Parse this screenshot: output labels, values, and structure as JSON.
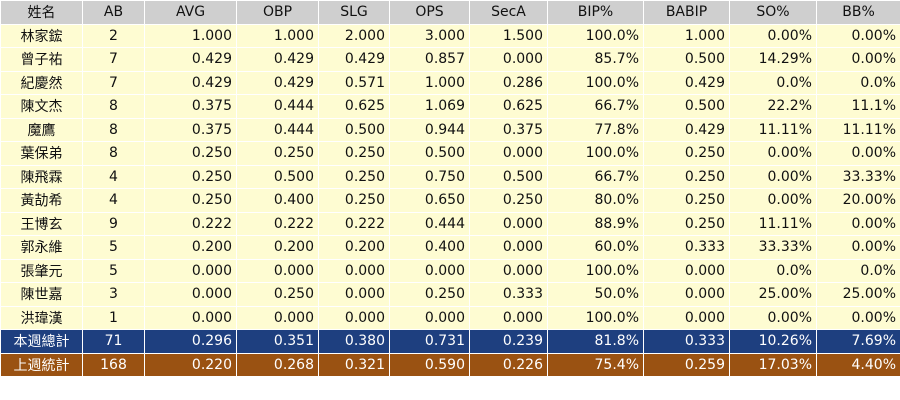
{
  "headers": [
    "姓名",
    "AB",
    "AVG",
    "OBP",
    "SLG",
    "OPS",
    "SecA",
    "BIP%",
    "BABIP",
    "SO%",
    "BB%"
  ],
  "rows": [
    [
      "林家鋐",
      "2",
      "1.000",
      "1.000",
      "2.000",
      "3.000",
      "1.500",
      "100.0%",
      "1.000",
      "0.00%",
      "0.00%"
    ],
    [
      "曾子祐",
      "7",
      "0.429",
      "0.429",
      "0.429",
      "0.857",
      "0.000",
      "85.7%",
      "0.500",
      "14.29%",
      "0.00%"
    ],
    [
      "紀慶然",
      "7",
      "0.429",
      "0.429",
      "0.571",
      "1.000",
      "0.286",
      "100.0%",
      "0.429",
      "0.0%",
      "0.0%"
    ],
    [
      "陳文杰",
      "8",
      "0.375",
      "0.444",
      "0.625",
      "1.069",
      "0.625",
      "66.7%",
      "0.500",
      "22.2%",
      "11.1%"
    ],
    [
      "魔鷹",
      "8",
      "0.375",
      "0.444",
      "0.500",
      "0.944",
      "0.375",
      "77.8%",
      "0.429",
      "11.11%",
      "11.11%"
    ],
    [
      "葉保弟",
      "8",
      "0.250",
      "0.250",
      "0.250",
      "0.500",
      "0.000",
      "100.0%",
      "0.250",
      "0.00%",
      "0.00%"
    ],
    [
      "陳飛霖",
      "4",
      "0.250",
      "0.500",
      "0.250",
      "0.750",
      "0.500",
      "66.7%",
      "0.250",
      "0.00%",
      "33.33%"
    ],
    [
      "黃劼希",
      "4",
      "0.250",
      "0.400",
      "0.250",
      "0.650",
      "0.250",
      "80.0%",
      "0.250",
      "0.00%",
      "20.00%"
    ],
    [
      "王博玄",
      "9",
      "0.222",
      "0.222",
      "0.222",
      "0.444",
      "0.000",
      "88.9%",
      "0.250",
      "11.11%",
      "0.00%"
    ],
    [
      "郭永維",
      "5",
      "0.200",
      "0.200",
      "0.200",
      "0.400",
      "0.000",
      "60.0%",
      "0.333",
      "33.33%",
      "0.00%"
    ],
    [
      "張肇元",
      "5",
      "0.000",
      "0.000",
      "0.000",
      "0.000",
      "0.000",
      "100.0%",
      "0.000",
      "0.0%",
      "0.0%"
    ],
    [
      "陳世嘉",
      "3",
      "0.000",
      "0.250",
      "0.000",
      "0.250",
      "0.333",
      "50.0%",
      "0.000",
      "25.00%",
      "25.00%"
    ],
    [
      "洪瑋漢",
      "1",
      "0.000",
      "0.000",
      "0.000",
      "0.000",
      "0.000",
      "100.0%",
      "0.000",
      "0.00%",
      "0.00%"
    ]
  ],
  "totals": [
    {
      "kind": "sum-this",
      "cells": [
        "本週總計",
        "71",
        "0.296",
        "0.351",
        "0.380",
        "0.731",
        "0.239",
        "81.8%",
        "0.333",
        "10.26%",
        "7.69%"
      ]
    },
    {
      "kind": "sum-last",
      "cells": [
        "上週統計",
        "168",
        "0.220",
        "0.268",
        "0.321",
        "0.590",
        "0.226",
        "75.4%",
        "0.259",
        "17.03%",
        "4.40%"
      ]
    }
  ],
  "colors": {
    "header_bg": "#cfcfcf",
    "row_bg": "#fefcd2",
    "this_week_bg": "#1e3f7f",
    "last_week_bg": "#9a5212"
  }
}
